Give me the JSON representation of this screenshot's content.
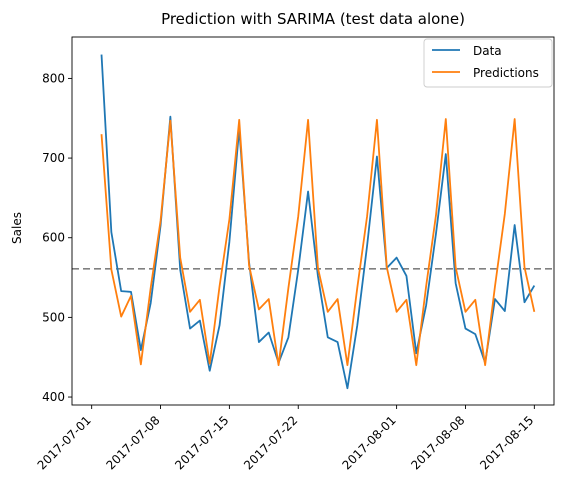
{
  "chart_data": {
    "type": "line",
    "title": "Prediction with SARIMA (test data alone)",
    "xlabel": "",
    "ylabel": "Sales",
    "x_start": "2017-07-02",
    "x_end": "2017-08-15",
    "xlim": [
      "2017-06-29",
      "2017-08-17"
    ],
    "ylim": [
      390,
      852
    ],
    "x_ticks": [
      "2017-07-01",
      "2017-07-08",
      "2017-07-15",
      "2017-07-22",
      "2017-08-01",
      "2017-08-08",
      "2017-08-15"
    ],
    "y_ticks": [
      400,
      500,
      600,
      700,
      800
    ],
    "legend_position": "top-right",
    "grid": false,
    "hline": {
      "value": 561,
      "style": "dashed",
      "color": "#808080"
    },
    "series": [
      {
        "name": "Data",
        "color": "#1f77b4",
        "values": [
          830,
          607,
          533,
          532,
          459,
          518,
          615,
          752,
          560,
          486,
          496,
          433,
          490,
          595,
          737,
          569,
          469,
          481,
          443,
          475,
          560,
          658,
          552,
          475,
          469,
          411,
          490,
          590,
          702,
          562,
          575,
          552,
          455,
          515,
          605,
          705,
          543,
          486,
          479,
          443,
          523,
          508,
          616,
          519,
          540
        ]
      },
      {
        "name": "Predictions",
        "color": "#ff7f0e",
        "values": [
          730,
          560,
          501,
          527,
          441,
          537,
          621,
          747,
          575,
          507,
          522,
          442,
          539,
          623,
          748,
          565,
          510,
          523,
          440,
          537,
          627,
          748,
          562,
          507,
          523,
          440,
          537,
          627,
          748,
          563,
          507,
          522,
          440,
          539,
          628,
          749,
          563,
          507,
          522,
          440,
          539,
          630,
          749,
          563,
          507
        ]
      }
    ]
  }
}
